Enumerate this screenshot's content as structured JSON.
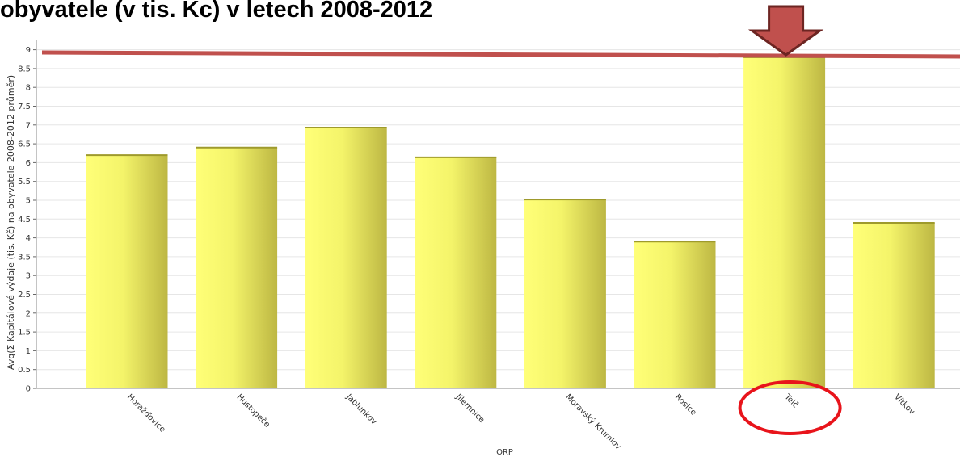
{
  "title": "obyvatele (v tis. Kc) v letech 2008-2012",
  "chart_data": {
    "type": "bar",
    "xlabel": "ORP",
    "ylabel": "Avg(Σ Kapitálové výdaje (tis. Kč) na obyvatele 2008-2012 průměr)",
    "categories": [
      "Horažďovice",
      "Hustopeče",
      "Jablunkov",
      "Jilemnice",
      "Moravský Krumlov",
      "Rosice",
      "Telč",
      "Vítkov"
    ],
    "values": [
      6.2,
      6.4,
      6.93,
      6.14,
      5.02,
      3.9,
      8.8,
      4.4
    ],
    "ylim": [
      0,
      9.2
    ],
    "yticks": [
      "0",
      "0.5",
      "1",
      "1.5",
      "2",
      "2.5",
      "3",
      "3.5",
      "4",
      "4.5",
      "5",
      "5.5",
      "6",
      "6.5",
      "7",
      "7.5",
      "8",
      "8.5",
      "9"
    ],
    "grid": true,
    "highlight_category": "Telč",
    "colors": {
      "bar_light": "#ffff70",
      "bar_dark": "#c8c24a",
      "annotation": "#c0504d",
      "circle": "#e8141b"
    }
  }
}
